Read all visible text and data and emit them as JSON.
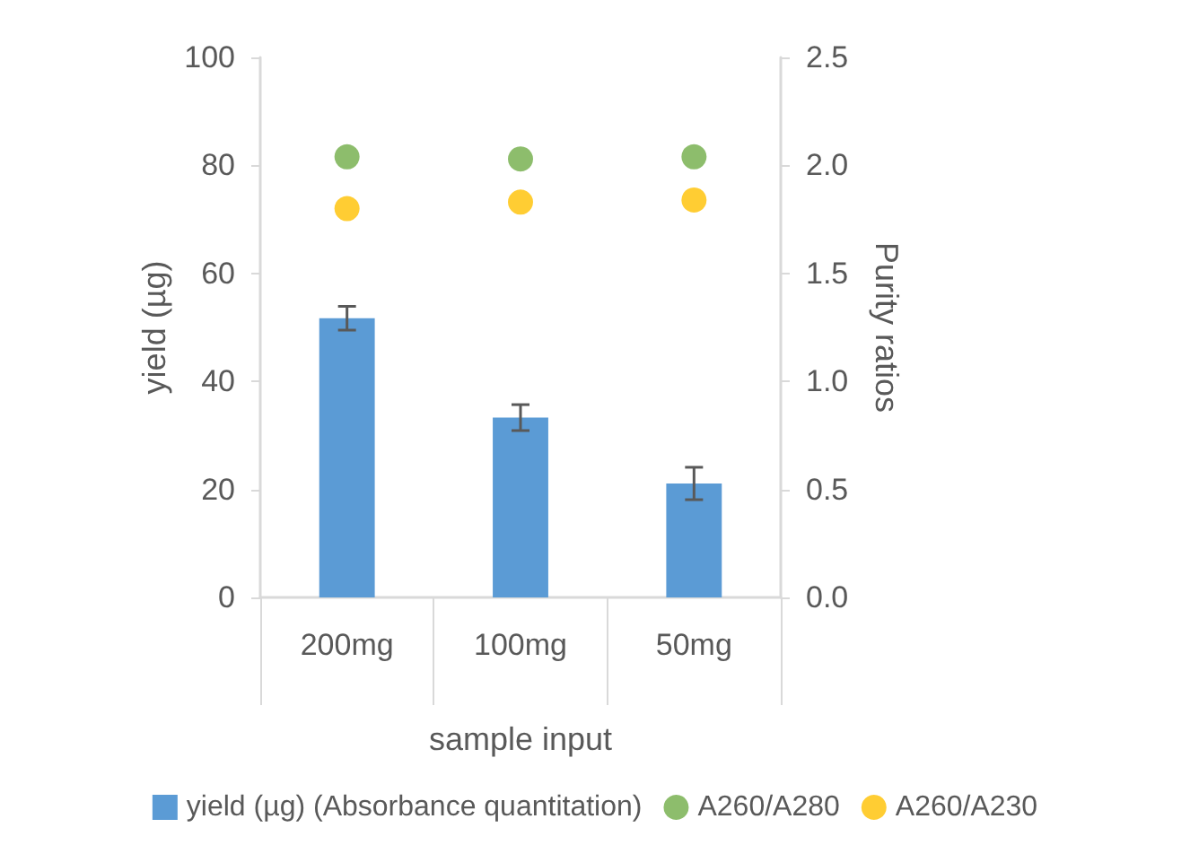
{
  "chart_data": {
    "type": "bar",
    "xlabel": "sample input",
    "ylabel": "yield (µg)",
    "y2label": "Purity ratios",
    "categories": [
      "200mg",
      "100mg",
      "50mg"
    ],
    "series": [
      {
        "name": "yield (µg) (Absorbance quantitation)",
        "color": "#5b9bd5",
        "values": [
          51.7,
          33.3,
          21.1
        ],
        "errors": [
          2.2,
          2.4,
          3.0
        ]
      },
      {
        "name": "A260/A280",
        "type": "scatter",
        "axis": "y2",
        "color": "#70ad47",
        "values": [
          2.04,
          2.03,
          2.04
        ]
      },
      {
        "name": "A260/A230",
        "type": "scatter",
        "axis": "y2",
        "color": "#ffc000",
        "values": [
          1.8,
          1.83,
          1.84
        ]
      }
    ],
    "ylim": [
      0,
      100
    ],
    "yticks": [
      0,
      20,
      40,
      60,
      80,
      100
    ],
    "y2lim": [
      0,
      2.5
    ],
    "y2ticks": [
      {
        "value": 0,
        "label": "0.0"
      },
      0.5,
      {
        "value": 1,
        "label": "1.0"
      },
      1.5,
      {
        "value": 2,
        "label": "2.0"
      },
      2.5
    ],
    "grid": false,
    "legend": "bottom",
    "marker": "circle"
  }
}
